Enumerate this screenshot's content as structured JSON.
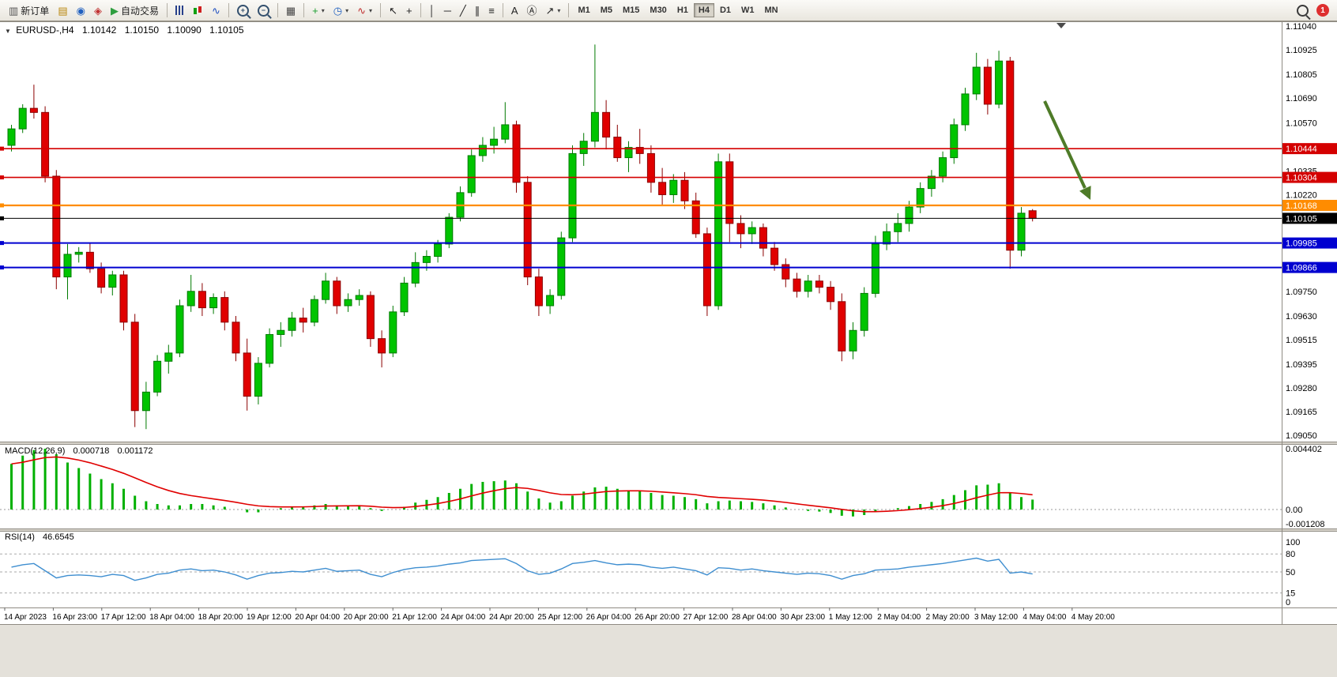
{
  "icons": {
    "symbol_marker": "▼",
    "caret": "▾"
  },
  "toolbar": {
    "notification_count": "1",
    "buttons": [
      {
        "name": "new-order-button",
        "glyph": "▥",
        "color": "#555555",
        "label": "新订单"
      },
      {
        "name": "charts-profile-button",
        "glyph": "▤",
        "color": "#b8860b"
      },
      {
        "name": "market-watch-button",
        "glyph": "◉",
        "color": "#2060c0"
      },
      {
        "name": "navigator-button",
        "glyph": "◈",
        "color": "#c03030"
      },
      {
        "name": "autotrading-button",
        "glyph": "▶",
        "color": "#2e9e3e",
        "label": "自动交易"
      },
      {
        "sep": true
      },
      {
        "name": "chart-bars-button",
        "css": "i-bars"
      },
      {
        "name": "chart-candles-button",
        "css": "i-candles"
      },
      {
        "name": "chart-line-button",
        "glyph": "∿",
        "color": "#2050c0"
      },
      {
        "sep": true
      },
      {
        "name": "zoom-in-button",
        "css": "i-zoom",
        "glyph": "+"
      },
      {
        "name": "zoom-out-button",
        "css": "i-zoom",
        "glyph": "−"
      },
      {
        "sep": true
      },
      {
        "name": "tile-windows-button",
        "glyph": "▦",
        "color": "#444444"
      },
      {
        "sep": true
      },
      {
        "name": "new-chart-button",
        "glyph": "+",
        "color": "#1a9e2e",
        "caret": true
      },
      {
        "name": "period-button",
        "glyph": "◷",
        "color": "#2060c0",
        "caret": true
      },
      {
        "name": "indicators-button",
        "glyph": "∿",
        "color": "#c03030",
        "caret": true
      },
      {
        "sep": true
      },
      {
        "name": "cursor-button",
        "glyph": "↖",
        "color": "#222222"
      },
      {
        "name": "crosshair-button",
        "glyph": "+",
        "color": "#222222"
      },
      {
        "sep": true
      },
      {
        "name": "vertical-line-button",
        "glyph": "│",
        "color": "#222222"
      },
      {
        "name": "horizontal-line-button",
        "glyph": "─",
        "color": "#222222"
      },
      {
        "name": "trendline-button",
        "glyph": "╱",
        "color": "#222222"
      },
      {
        "name": "channel-button",
        "glyph": "∥",
        "color": "#222222"
      },
      {
        "name": "fibonacci-button",
        "glyph": "≡",
        "color": "#222222"
      },
      {
        "sep": true
      },
      {
        "name": "text-button",
        "glyph": "A",
        "color": "#222222"
      },
      {
        "name": "text-label-button",
        "glyph": "Ⓐ",
        "color": "#222222"
      },
      {
        "name": "arrows-button",
        "glyph": "↗",
        "color": "#222222",
        "caret": true
      },
      {
        "sep": true
      }
    ],
    "timeframes": [
      {
        "label": "M1"
      },
      {
        "label": "M5"
      },
      {
        "label": "M15"
      },
      {
        "label": "M30"
      },
      {
        "label": "H1"
      },
      {
        "label": "H4",
        "active": true
      },
      {
        "label": "D1"
      },
      {
        "label": "W1"
      },
      {
        "label": "MN"
      }
    ]
  },
  "chart": {
    "symbol_line": {
      "symbol": "EURUSD-,H4",
      "open": "1.10142",
      "high": "1.10150",
      "low": "1.10090",
      "close": "1.10105"
    }
  },
  "macd_label": {
    "name": "MACD(12,26,9)",
    "main": "0.000718",
    "signal": "0.001172"
  },
  "rsi_label": {
    "name": "RSI(14)",
    "value": "46.6545"
  },
  "chart_data": {
    "type": "candlestick",
    "symbol": "EURUSD-",
    "timeframe": "H4",
    "current_ohlc": {
      "open": 1.10142,
      "high": 1.1015,
      "low": 1.1009,
      "close": 1.10105
    },
    "y_axis": {
      "min": 1.0905,
      "max": 1.1104,
      "tick_labels": [
        "1.11040",
        "1.10925",
        "1.10805",
        "1.10690",
        "1.10570",
        "1.10335",
        "1.10220",
        "1.09750",
        "1.09630",
        "1.09515",
        "1.09395",
        "1.09280",
        "1.09165",
        "1.09050"
      ]
    },
    "x_axis_labels": [
      "14 Apr 2023",
      "16 Apr 23:00",
      "17 Apr 12:00",
      "18 Apr 04:00",
      "18 Apr 20:00",
      "19 Apr 12:00",
      "20 Apr 04:00",
      "20 Apr 20:00",
      "21 Apr 12:00",
      "24 Apr 04:00",
      "24 Apr 20:00",
      "25 Apr 12:00",
      "26 Apr 04:00",
      "26 Apr 20:00",
      "27 Apr 12:00",
      "28 Apr 04:00",
      "30 Apr 23:00",
      "1 May 12:00",
      "2 May 04:00",
      "2 May 20:00",
      "3 May 12:00",
      "4 May 04:00",
      "4 May 20:00"
    ],
    "horizontal_lines": [
      {
        "price": 1.10444,
        "color": "#d40000",
        "width": 1.6
      },
      {
        "price": 1.10304,
        "color": "#d40000",
        "width": 1.6
      },
      {
        "price": 1.10168,
        "color": "#ff8c00",
        "width": 2.2
      },
      {
        "price": 1.10105,
        "color": "#000000",
        "width": 1,
        "role": "current-price-line"
      },
      {
        "price": 1.09985,
        "color": "#0000d0",
        "width": 2
      },
      {
        "price": 1.09866,
        "color": "#0000d0",
        "width": 2
      }
    ],
    "price_badges": [
      {
        "value": "1.10444",
        "color": "#d40000"
      },
      {
        "value": "1.10304",
        "color": "#d40000"
      },
      {
        "value": "1.10168",
        "color": "#ff8c00"
      },
      {
        "value": "1.10105",
        "color": "#000000"
      },
      {
        "value": "1.09985",
        "color": "#0000d0"
      },
      {
        "value": "1.09866",
        "color": "#0000d0"
      }
    ],
    "annotation_arrow": {
      "color": "#4e7b28",
      "from_price": 1.1068,
      "to_price": 1.102
    },
    "colors": {
      "bull": "#00c400",
      "bull_border": "#007a00",
      "bear": "#e00000",
      "bear_border": "#8b0000",
      "macd_histogram": "#00b000",
      "macd_signal": "#e00000",
      "rsi_line": "#3e8ed0"
    },
    "candles": [
      [
        1.1046,
        1.1056,
        1.1043,
        1.1054
      ],
      [
        1.1054,
        1.1066,
        1.1052,
        1.1064
      ],
      [
        1.1064,
        1.10755,
        1.1059,
        1.1062
      ],
      [
        1.1062,
        1.1065,
        1.1028,
        1.1031
      ],
      [
        1.1031,
        1.1034,
        1.0976,
        1.0982
      ],
      [
        1.0982,
        1.0998,
        1.09711,
        1.0993
      ],
      [
        1.0993,
        1.09965,
        1.0989,
        1.0994
      ],
      [
        1.0994,
        1.09985,
        1.0984,
        1.0986
      ],
      [
        1.0986,
        1.0989,
        1.0974,
        1.0977
      ],
      [
        1.0977,
        1.0985,
        1.0973,
        1.0983
      ],
      [
        1.0983,
        1.0985,
        1.0956,
        1.096
      ],
      [
        1.096,
        1.0964,
        1.0909,
        1.0917
      ],
      [
        1.0917,
        1.0931,
        1.0908,
        1.0926
      ],
      [
        1.0926,
        1.0944,
        1.0924,
        1.0941
      ],
      [
        1.0941,
        1.0949,
        1.0935,
        1.0945
      ],
      [
        1.0945,
        1.0971,
        1.0943,
        1.0968
      ],
      [
        1.0968,
        1.0983,
        1.0965,
        1.0975
      ],
      [
        1.0975,
        1.0979,
        1.0963,
        1.0967
      ],
      [
        1.0967,
        1.0974,
        1.0964,
        1.0972
      ],
      [
        1.0972,
        1.0975,
        1.0956,
        1.096
      ],
      [
        1.096,
        1.0963,
        1.0941,
        1.0945
      ],
      [
        1.0945,
        1.0952,
        1.0917,
        1.0924
      ],
      [
        1.0924,
        1.0943,
        1.092,
        1.094
      ],
      [
        1.094,
        1.0957,
        1.0938,
        1.0954
      ],
      [
        1.0954,
        1.096,
        1.0948,
        1.0956
      ],
      [
        1.0956,
        1.0965,
        1.0953,
        1.0962
      ],
      [
        1.0962,
        1.0967,
        1.0955,
        1.096
      ],
      [
        1.096,
        1.0973,
        1.0958,
        1.0971
      ],
      [
        1.0971,
        1.0984,
        1.0969,
        1.098
      ],
      [
        1.098,
        1.0982,
        1.0964,
        1.0968
      ],
      [
        1.0968,
        1.0974,
        1.0965,
        1.0971
      ],
      [
        1.0971,
        1.0976,
        1.0968,
        1.0973
      ],
      [
        1.0973,
        1.0975,
        1.0948,
        1.0952
      ],
      [
        1.0952,
        1.0956,
        1.0938,
        1.0945
      ],
      [
        1.0945,
        1.0968,
        1.0943,
        1.0965
      ],
      [
        1.0965,
        1.0982,
        1.0963,
        1.0979
      ],
      [
        1.0979,
        1.0994,
        1.0977,
        1.0989
      ],
      [
        1.0989,
        1.0995,
        1.0985,
        1.0992
      ],
      [
        1.0992,
        1.1,
        1.0989,
        1.0998
      ],
      [
        1.0998,
        1.1013,
        1.0996,
        1.1011
      ],
      [
        1.1011,
        1.1026,
        1.1009,
        1.1023
      ],
      [
        1.1023,
        1.1044,
        1.1021,
        1.1041
      ],
      [
        1.1041,
        1.105,
        1.1038,
        1.1046
      ],
      [
        1.1046,
        1.1055,
        1.1042,
        1.1049
      ],
      [
        1.1049,
        1.1067,
        1.1047,
        1.1056
      ],
      [
        1.1056,
        1.1058,
        1.1023,
        1.1028
      ],
      [
        1.1028,
        1.1031,
        1.0978,
        1.0982
      ],
      [
        1.0982,
        1.0986,
        1.0963,
        1.0968
      ],
      [
        1.0968,
        1.0976,
        1.0964,
        1.0973
      ],
      [
        1.0973,
        1.1004,
        1.0971,
        1.1001
      ],
      [
        1.1001,
        1.1046,
        1.0999,
        1.1042
      ],
      [
        1.1042,
        1.1052,
        1.1036,
        1.1048
      ],
      [
        1.1048,
        1.1095,
        1.1045,
        1.1062
      ],
      [
        1.1062,
        1.1068,
        1.1044,
        1.105
      ],
      [
        1.105,
        1.1056,
        1.1038,
        1.104
      ],
      [
        1.104,
        1.1048,
        1.1033,
        1.1045
      ],
      [
        1.1045,
        1.1054,
        1.1037,
        1.1042
      ],
      [
        1.1042,
        1.1046,
        1.1023,
        1.1028
      ],
      [
        1.1028,
        1.1035,
        1.1017,
        1.1022
      ],
      [
        1.1022,
        1.1032,
        1.1018,
        1.1029
      ],
      [
        1.1029,
        1.1033,
        1.1015,
        1.1019
      ],
      [
        1.1019,
        1.1023,
        1.1001,
        1.1003
      ],
      [
        1.1003,
        1.1006,
        1.0963,
        1.0968
      ],
      [
        1.0968,
        1.1042,
        1.0966,
        1.1038
      ],
      [
        1.1038,
        1.1042,
        1.0999,
        1.1008
      ],
      [
        1.1008,
        1.1012,
        1.0996,
        1.1003
      ],
      [
        1.1003,
        1.1009,
        1.0998,
        1.1006
      ],
      [
        1.1006,
        1.1008,
        1.0992,
        1.0996
      ],
      [
        1.0996,
        1.0999,
        1.0985,
        1.0988
      ],
      [
        1.0988,
        1.0991,
        1.0977,
        1.0981
      ],
      [
        1.0981,
        1.0984,
        1.0972,
        1.0975
      ],
      [
        1.0975,
        1.0983,
        1.0972,
        1.098
      ],
      [
        1.098,
        1.0983,
        1.0974,
        1.0977
      ],
      [
        1.0977,
        1.098,
        1.0966,
        1.097
      ],
      [
        1.097,
        1.0974,
        1.0941,
        1.0946
      ],
      [
        1.0946,
        1.096,
        1.0942,
        1.0956
      ],
      [
        1.0956,
        1.0977,
        1.0953,
        1.0974
      ],
      [
        1.0974,
        1.1002,
        1.0972,
        1.0998
      ],
      [
        1.0998,
        1.1008,
        1.0995,
        1.1004
      ],
      [
        1.1004,
        1.1013,
        1.0999,
        1.1008
      ],
      [
        1.1008,
        1.1019,
        1.1004,
        1.1016
      ],
      [
        1.1016,
        1.1028,
        1.1013,
        1.1025
      ],
      [
        1.1025,
        1.1034,
        1.1021,
        1.1031
      ],
      [
        1.1031,
        1.1043,
        1.1028,
        1.104
      ],
      [
        1.104,
        1.1059,
        1.1037,
        1.1056
      ],
      [
        1.1056,
        1.1074,
        1.1053,
        1.1071
      ],
      [
        1.1071,
        1.1091,
        1.1068,
        1.1084
      ],
      [
        1.1084,
        1.1088,
        1.1061,
        1.1066
      ],
      [
        1.1066,
        1.1092,
        1.1064,
        1.1087
      ],
      [
        1.1087,
        1.1089,
        1.0986,
        1.0995
      ],
      [
        1.0995,
        1.1016,
        1.0992,
        1.1013
      ],
      [
        1.10142,
        1.1015,
        1.1009,
        1.10105
      ]
    ],
    "macd": {
      "params": "12,26,9",
      "current_main": 0.000718,
      "current_signal": 0.001172,
      "axis_labels": [
        "0.004402",
        "0.00",
        "-0.001208"
      ],
      "main": [
        0.0033,
        0.0039,
        0.0043,
        0.0044,
        0.004,
        0.0034,
        0.003,
        0.0026,
        0.0022,
        0.0019,
        0.0015,
        0.001,
        0.0006,
        0.0004,
        0.0003,
        0.0003,
        0.0004,
        0.0004,
        0.0003,
        0.0002,
        0.0,
        -0.0002,
        -0.0002,
        0.0,
        0.0001,
        0.0002,
        0.0002,
        0.0003,
        0.0004,
        0.0003,
        0.0003,
        0.0003,
        0.0001,
        -0.0001,
        0.0,
        0.0002,
        0.0005,
        0.0007,
        0.0009,
        0.0012,
        0.0015,
        0.00185,
        0.002,
        0.00205,
        0.0021,
        0.0019,
        0.0013,
        0.0008,
        0.0005,
        0.0006,
        0.001,
        0.0013,
        0.0016,
        0.00165,
        0.0015,
        0.0014,
        0.00135,
        0.0012,
        0.00105,
        0.001,
        0.0009,
        0.00075,
        0.00045,
        0.0006,
        0.00065,
        0.0006,
        0.00055,
        0.00045,
        0.0003,
        0.00015,
        0.0,
        -0.0001,
        -0.00015,
        -0.00025,
        -0.00045,
        -0.0005,
        -0.0004,
        -0.00015,
        0.0,
        0.0001,
        0.00025,
        0.0004,
        0.00055,
        0.00075,
        0.00105,
        0.0014,
        0.00175,
        0.0018,
        0.0019,
        0.00125,
        0.0009,
        0.000718
      ]
    },
    "rsi": {
      "period": 14,
      "current": 46.6545,
      "axis_labels": [
        "100",
        "80",
        "50",
        "15",
        "0"
      ],
      "levels": [
        80,
        50,
        15
      ],
      "values": [
        58,
        62,
        64,
        52,
        40,
        44,
        45,
        44,
        42,
        46,
        44,
        36,
        40,
        46,
        48,
        53,
        55,
        52,
        53,
        50,
        45,
        38,
        44,
        48,
        49,
        51,
        50,
        53,
        56,
        51,
        52,
        53,
        46,
        42,
        49,
        54,
        57,
        58,
        60,
        63,
        65,
        69,
        70,
        71,
        72,
        64,
        52,
        46,
        48,
        55,
        64,
        66,
        69,
        65,
        62,
        63,
        62,
        58,
        56,
        58,
        55,
        52,
        45,
        57,
        56,
        53,
        55,
        52,
        50,
        48,
        46,
        48,
        47,
        44,
        38,
        44,
        47,
        53,
        54,
        55,
        58,
        60,
        62,
        64,
        67,
        70,
        73,
        68,
        71,
        48,
        50,
        46.6545
      ]
    }
  }
}
